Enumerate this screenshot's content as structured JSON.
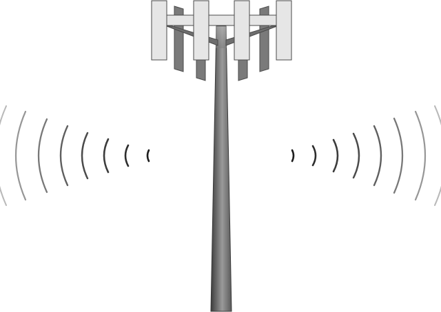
{
  "illustration": {
    "subject": "cell-tower-icon",
    "wave_icon": "signal-waves-icon",
    "colors": {
      "background": "#ffffff",
      "panel_fill": "#e6e6e6",
      "panel_stroke": "#4a4a4a",
      "back_panel_fill": "#7a7a7a",
      "mast_dark": "#3c3c3c",
      "mast_light": "#bdbdbd",
      "wave_near": "#1e1e1e",
      "wave_far": "#c8c8c8"
    }
  }
}
